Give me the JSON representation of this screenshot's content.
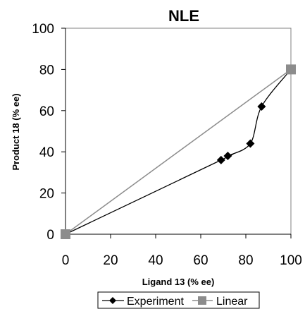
{
  "chart_data": {
    "type": "line",
    "title": "NLE",
    "xlabel": "Ligand 13 (% ee)",
    "ylabel": "Product 18 (% ee)",
    "xlim": [
      0,
      100
    ],
    "ylim": [
      0,
      100
    ],
    "x_ticks": [
      0,
      20,
      40,
      60,
      80,
      100
    ],
    "y_ticks": [
      0,
      20,
      40,
      60,
      80,
      100
    ],
    "grid": false,
    "legend_position": "bottom",
    "series": [
      {
        "name": "Experiment",
        "color": "#000000",
        "marker": "diamond",
        "x": [
          0,
          69,
          72,
          82,
          87,
          100
        ],
        "y": [
          0,
          36,
          38,
          44,
          62,
          80
        ]
      },
      {
        "name": "Linear",
        "color": "#8c8c8c",
        "marker": "square",
        "x": [
          0,
          100
        ],
        "y": [
          0,
          80
        ]
      }
    ]
  }
}
